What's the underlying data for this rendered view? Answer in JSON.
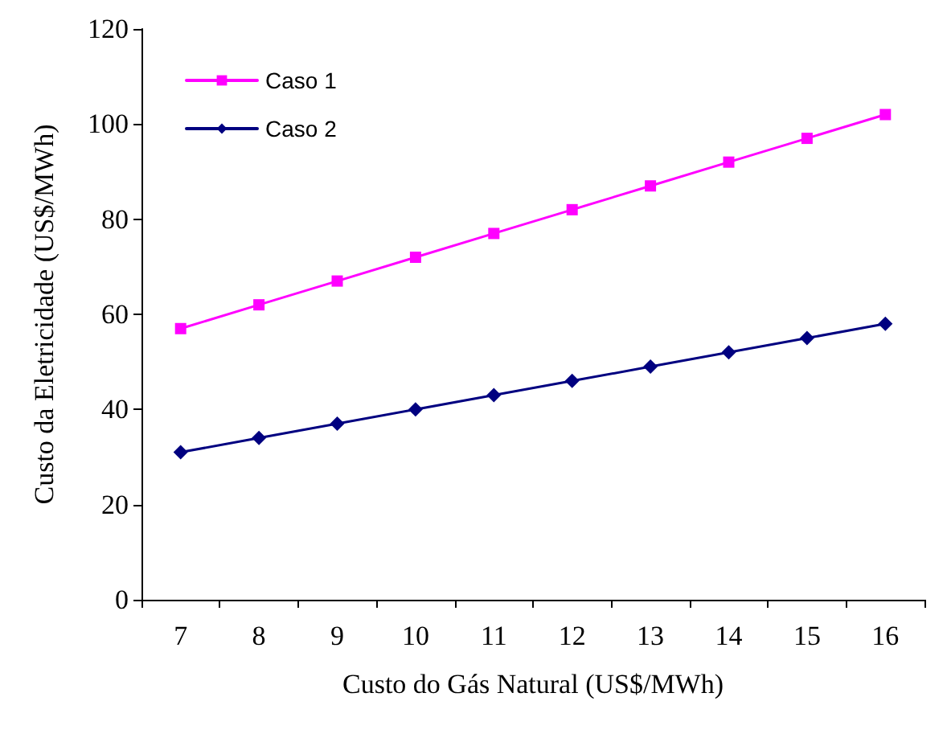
{
  "chart_data": {
    "type": "line",
    "xlabel": "Custo do Gás Natural (US$/MWh)",
    "ylabel": "Custo da Eletricidade (US$/MWh)",
    "categories": [
      "7",
      "8",
      "9",
      "10",
      "11",
      "12",
      "13",
      "14",
      "15",
      "16"
    ],
    "series": [
      {
        "name": "Caso 1",
        "color": "#ff00ff",
        "marker": "square",
        "values": [
          57,
          62,
          67,
          72,
          77,
          82,
          87,
          92,
          97,
          102
        ]
      },
      {
        "name": "Caso 2",
        "color": "#000080",
        "marker": "diamond",
        "values": [
          31,
          34,
          37,
          40,
          43,
          46,
          49,
          52,
          55,
          58
        ]
      }
    ],
    "ylim": [
      0,
      120
    ],
    "yticks": [
      0,
      20,
      40,
      60,
      80,
      100,
      120
    ],
    "grid": false,
    "legend": "top left",
    "line_style": "solid"
  }
}
